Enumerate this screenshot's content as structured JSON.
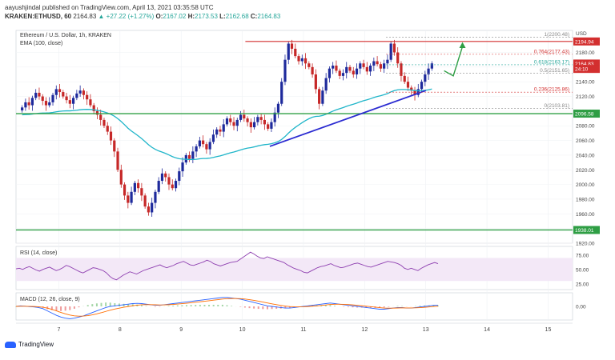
{
  "header": {
    "publisher_line": "aayushjindal published on TradingView.com, April 13, 2021 03:35:58 UTC",
    "symbol": "KRAKEN:ETHUSD, 60",
    "last": "2164.83",
    "change": "+27.22 (+1.27%)",
    "o_label": "O:",
    "o": "2167.02",
    "h_label": "H:",
    "h": "2173.53",
    "l_label": "L:",
    "l": "2162.68",
    "c_label": "C:",
    "c": "2164.83"
  },
  "legend": {
    "title": "Ethereum / U.S. Dollar, 1h, KRAKEN",
    "ema": "EMA (100, close)",
    "rsi": "RSI (14, close)",
    "macd": "MACD (12, 26, close, 9)"
  },
  "currency": "USD",
  "footer": {
    "brand": "TradingView"
  },
  "colors": {
    "up": "#26a69a",
    "down": "#ef5350",
    "candle_up": "#1e2a9c",
    "candle_down": "#c62828",
    "ema": "#1fb5c9",
    "trend": "#2b2bd1",
    "support": "#2e9e44",
    "resistance": "#d32f2f",
    "rsi": "#8e3fb0",
    "macd": "#2962ff",
    "signal": "#ff6d00"
  },
  "chart_data": {
    "type": "candlestick",
    "x_ticks": [
      "7",
      "8",
      "9",
      "10",
      "11",
      "12",
      "13",
      "14",
      "15"
    ],
    "price_ticks": [
      2180,
      2160,
      2140,
      2120,
      2100,
      2080,
      2060,
      2040,
      2020,
      2000,
      1980,
      1960,
      1940,
      1920
    ],
    "ylim": [
      1920,
      2210
    ],
    "price_badges": [
      {
        "text": "2194.94",
        "value": 2194.94,
        "color": "#d32f2f"
      },
      {
        "text": "2164.83",
        "value": 2164.83,
        "color": "#d32f2f"
      },
      {
        "text": "24:10",
        "value": 2157.5,
        "color": "#d32f2f"
      },
      {
        "text": "2096.58",
        "value": 2096.58,
        "color": "#2e9e44"
      },
      {
        "text": "1938.01",
        "value": 1938.01,
        "color": "#2e9e44"
      }
    ],
    "fib_levels": [
      {
        "text": "1(2200.48)",
        "value": 2200.48,
        "color": "#888888"
      },
      {
        "text": "0.764(2177.43)",
        "value": 2177.43,
        "color": "#d32f2f"
      },
      {
        "text": "0.618(2163.17)",
        "value": 2163.17,
        "color": "#26a69a"
      },
      {
        "text": "0.5(2151.65)",
        "value": 2151.65,
        "color": "#888888"
      },
      {
        "text": "0.236(2125.86)",
        "value": 2125.86,
        "color": "#d32f2f"
      },
      {
        "text": "0(2103.81)",
        "value": 2103.81,
        "color": "#888888"
      }
    ],
    "support_levels": [
      2096.58,
      1938.01
    ],
    "resistance_level": 2194.94,
    "trendline": {
      "from": [
        10.45,
        2052
      ],
      "to": [
        13.0,
        2128
      ]
    },
    "rsi": {
      "ticks": [
        75,
        50,
        25
      ],
      "band": [
        30,
        70
      ],
      "series": [
        51,
        52,
        50,
        53,
        55,
        52,
        49,
        47,
        50,
        52,
        54,
        51,
        48,
        50,
        53,
        57,
        55,
        52,
        49,
        46,
        44,
        47,
        50,
        53,
        52,
        50,
        48,
        44,
        38,
        34,
        32,
        36,
        40,
        43,
        46,
        44,
        42,
        45,
        48,
        50,
        52,
        54,
        56,
        58,
        55,
        53,
        55,
        57,
        60,
        62,
        64,
        61,
        58,
        57,
        59,
        61,
        63,
        66,
        64,
        60,
        58,
        56,
        58,
        60,
        62,
        63,
        64,
        68,
        72,
        76,
        80,
        77,
        73,
        70,
        69,
        72,
        70,
        68,
        66,
        64,
        62,
        58,
        55,
        52,
        50,
        48,
        45,
        44,
        47,
        50,
        53,
        55,
        56,
        58,
        60,
        57,
        55,
        53,
        54,
        56,
        58,
        60,
        61,
        59,
        57,
        55,
        54,
        56,
        58,
        60,
        62,
        64,
        63,
        62,
        60,
        57,
        52,
        50,
        52,
        50,
        48,
        52,
        55,
        58,
        60,
        62,
        60
      ]
    },
    "macd": {
      "ticks": [
        "0.00"
      ],
      "macd_line": [
        0,
        1,
        0.5,
        -0.5,
        -1,
        -2,
        -4,
        -8,
        -12,
        -16,
        -19,
        -21,
        -22,
        -21,
        -19,
        -17,
        -14,
        -11,
        -8,
        -5,
        -2,
        0,
        1,
        2,
        3,
        4,
        5,
        5.5,
        5,
        4,
        3,
        2,
        2,
        3,
        4,
        5,
        6,
        7,
        8,
        9,
        10,
        11,
        12,
        13,
        14,
        15,
        16,
        16,
        15,
        14,
        13,
        11,
        9,
        7,
        5,
        3,
        1,
        0,
        -1,
        -2,
        -3,
        -3,
        -2,
        -1,
        0,
        1,
        2,
        3,
        4,
        5,
        6,
        5,
        4,
        3,
        2,
        1,
        0,
        -1,
        -2,
        -3,
        -4,
        -5,
        -5,
        -4,
        -3,
        -2,
        -2,
        -3,
        -3,
        -2,
        -1,
        0,
        1,
        2,
        2
      ]
    },
    "candles_close": [
      2105,
      2112,
      2108,
      2118,
      2125,
      2120,
      2114,
      2108,
      2112,
      2122,
      2130,
      2126,
      2120,
      2115,
      2110,
      2118,
      2124,
      2128,
      2122,
      2116,
      2108,
      2100,
      2095,
      2088,
      2080,
      2072,
      2060,
      2045,
      2020,
      2000,
      1985,
      1975,
      1990,
      2002,
      1995,
      1985,
      1970,
      1962,
      1975,
      1990,
      2005,
      2015,
      2010,
      2000,
      1995,
      2005,
      2018,
      2030,
      2040,
      2035,
      2045,
      2052,
      2060,
      2055,
      2048,
      2058,
      2068,
      2075,
      2072,
      2082,
      2090,
      2085,
      2080,
      2088,
      2095,
      2090,
      2085,
      2078,
      2085,
      2092,
      2088,
      2082,
      2076,
      2085,
      2098,
      2110,
      2140,
      2170,
      2192,
      2185,
      2175,
      2168,
      2172,
      2165,
      2160,
      2150,
      2130,
      2110,
      2128,
      2145,
      2158,
      2162,
      2155,
      2148,
      2152,
      2160,
      2155,
      2150,
      2158,
      2165,
      2160,
      2154,
      2162,
      2168,
      2164,
      2158,
      2165,
      2170,
      2192,
      2180,
      2165,
      2148,
      2140,
      2132,
      2128,
      2122,
      2130,
      2140,
      2150,
      2158,
      2165
    ]
  }
}
